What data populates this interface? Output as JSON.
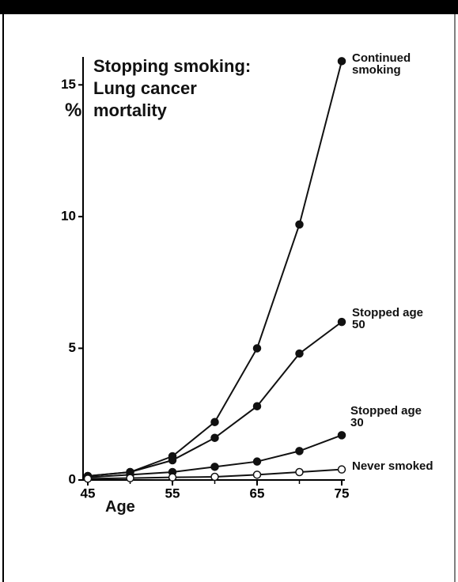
{
  "chart_data": {
    "type": "line",
    "title": "Stopping smoking: Lung cancer mortality",
    "ylabel": "%",
    "xlabel": "Age",
    "x": [
      45,
      50,
      55,
      60,
      65,
      70,
      75
    ],
    "series": [
      {
        "name": "Continued smoking",
        "color": "#111111",
        "filled": true,
        "values": [
          0.15,
          0.3,
          0.9,
          2.2,
          5.0,
          9.7,
          15.9
        ]
      },
      {
        "name": "Stopped age 50",
        "color": "#111111",
        "filled": true,
        "values": [
          0.15,
          0.3,
          0.75,
          1.6,
          2.8,
          4.8,
          6.0
        ]
      },
      {
        "name": "Stopped age 30",
        "color": "#111111",
        "filled": true,
        "values": [
          0.1,
          0.2,
          0.3,
          0.5,
          0.7,
          1.1,
          1.7
        ]
      },
      {
        "name": "Never smoked",
        "color": "#111111",
        "filled": false,
        "values": [
          0.05,
          0.07,
          0.1,
          0.12,
          0.2,
          0.3,
          0.4
        ]
      }
    ],
    "xlim": [
      45,
      75
    ],
    "xticks": [
      45,
      55,
      65,
      75
    ],
    "x_minor_ticks": [
      50,
      60,
      70
    ],
    "ylim": [
      0,
      16
    ],
    "yticks": [
      0,
      5,
      10,
      15
    ]
  }
}
